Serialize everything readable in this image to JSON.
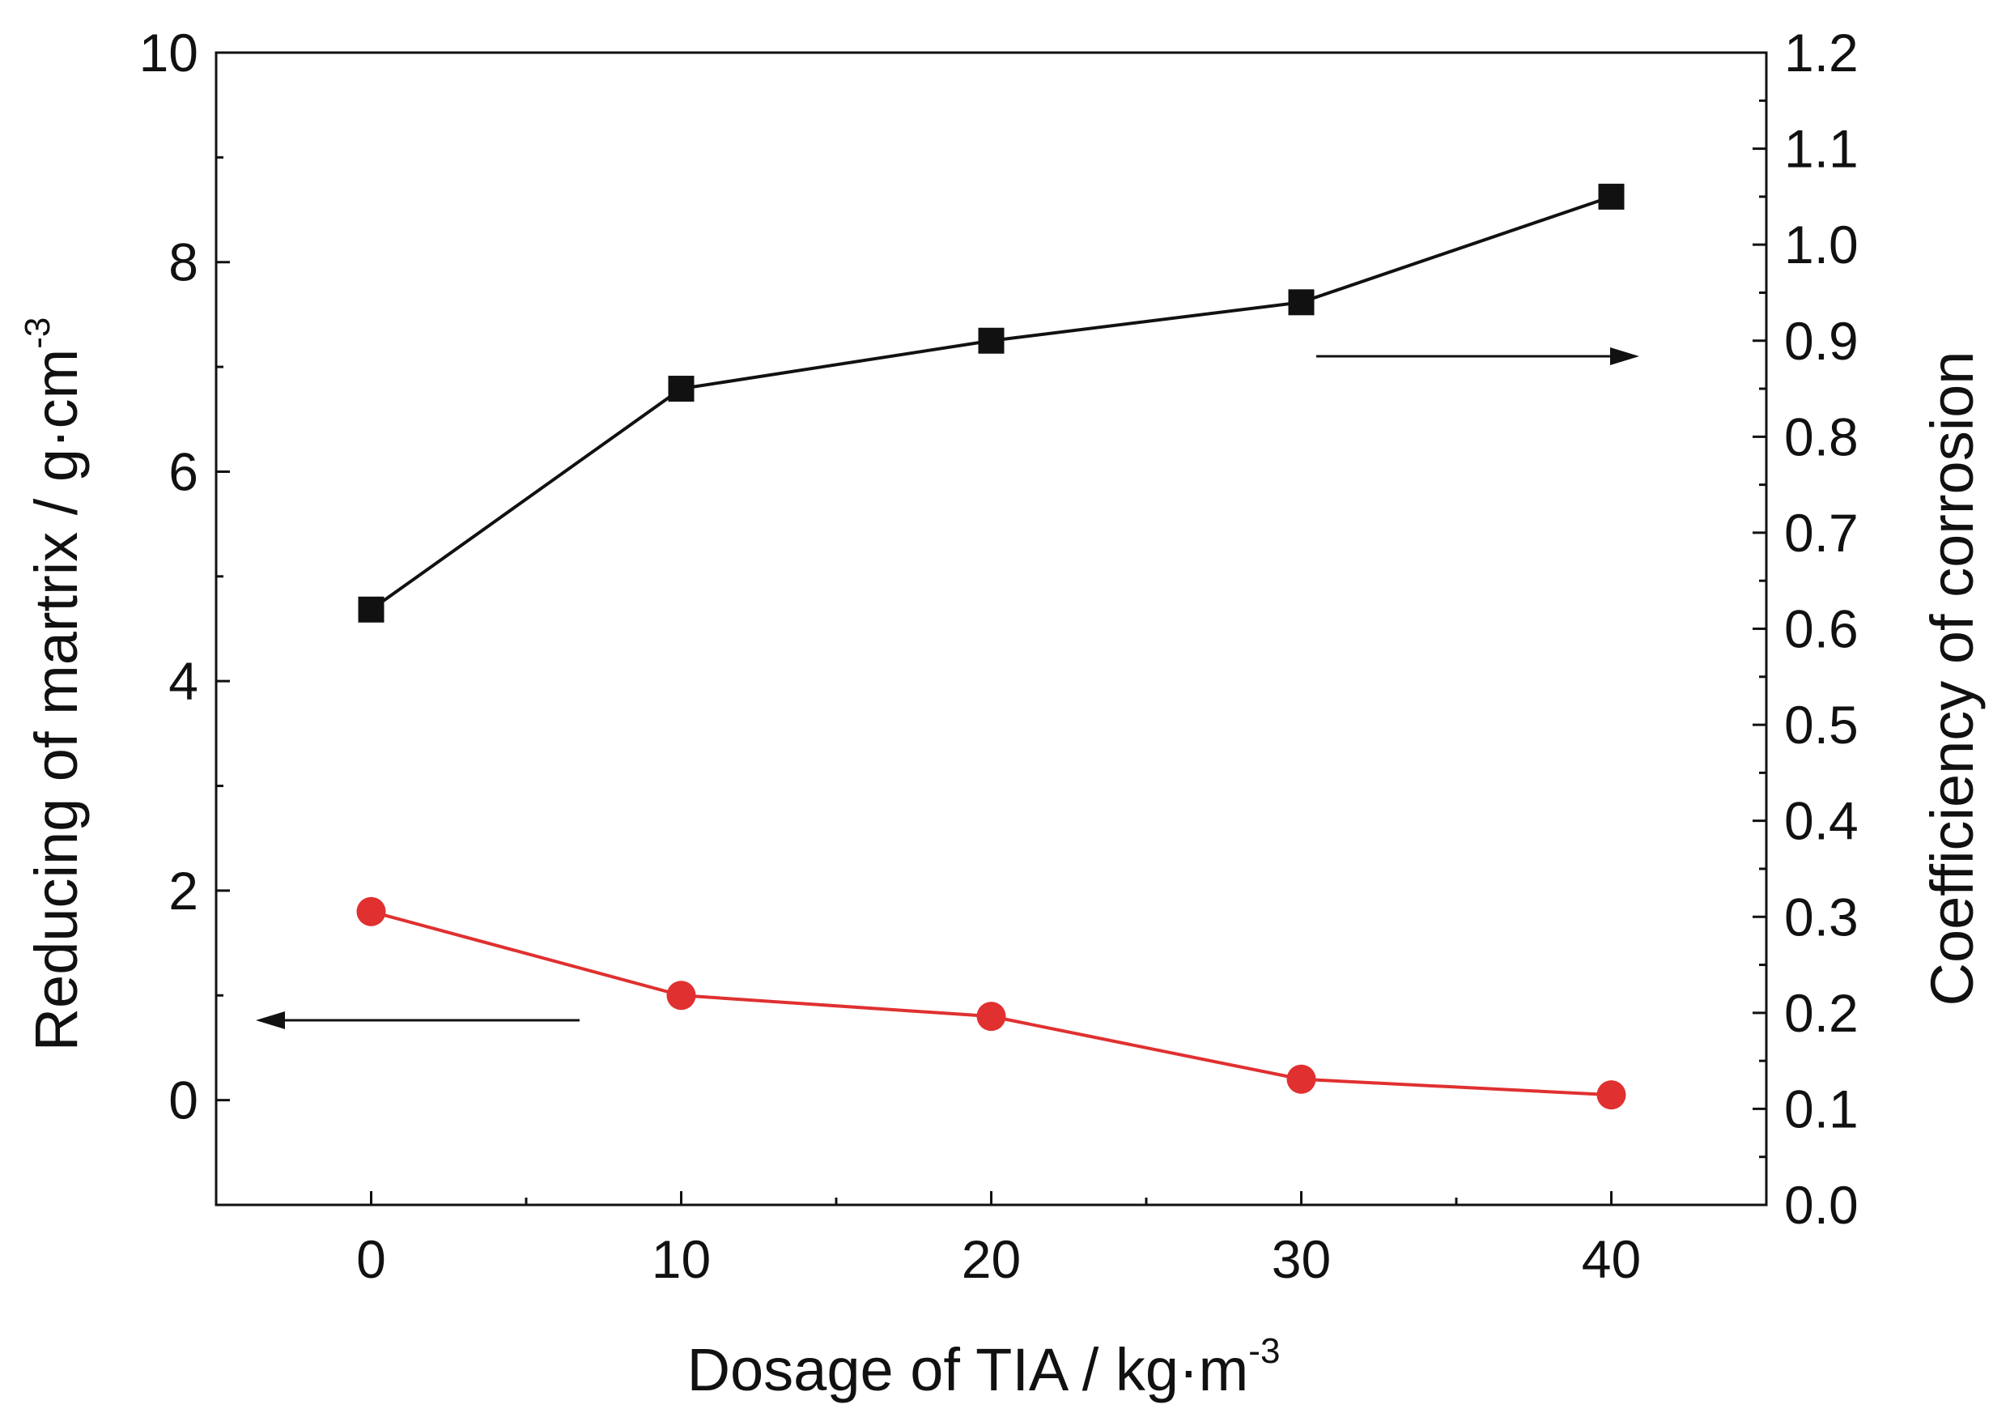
{
  "chart_data": {
    "type": "line",
    "xlabel": {
      "main": "Dosage of TIA / kg·m",
      "sup": "-3"
    },
    "ylabel_left": {
      "main": "Reducing of martrix / g·cm",
      "sup": "-3"
    },
    "ylabel_right": "Coefficiency of corrosion",
    "xlim": [
      -5,
      45
    ],
    "ylim_left": [
      -1,
      10
    ],
    "ylim_right": [
      0.0,
      1.2
    ],
    "x_ticks": [
      "0",
      "10",
      "20",
      "30",
      "40"
    ],
    "y_left_ticks": [
      "0",
      "2",
      "4",
      "6",
      "8",
      "10"
    ],
    "y_right_ticks": [
      "0.0",
      "0.1",
      "0.2",
      "0.3",
      "0.4",
      "0.5",
      "0.6",
      "0.7",
      "0.8",
      "0.9",
      "1.0",
      "1.1",
      "1.2"
    ],
    "grid": false,
    "series": [
      {
        "axis": "right",
        "marker": "square",
        "color": "#111111",
        "x": [
          0,
          10,
          20,
          30,
          40
        ],
        "y": [
          0.62,
          0.85,
          0.9,
          0.94,
          1.05
        ]
      },
      {
        "axis": "left",
        "marker": "circle",
        "color": "#e03030",
        "x": [
          0,
          10,
          20,
          30,
          40
        ],
        "y": [
          1.8,
          1.0,
          0.8,
          0.2,
          0.05
        ]
      }
    ],
    "annotations": [
      {
        "type": "arrow",
        "direction": "left",
        "points_to": "left-axis"
      },
      {
        "type": "arrow",
        "direction": "right",
        "points_to": "right-axis"
      }
    ]
  }
}
